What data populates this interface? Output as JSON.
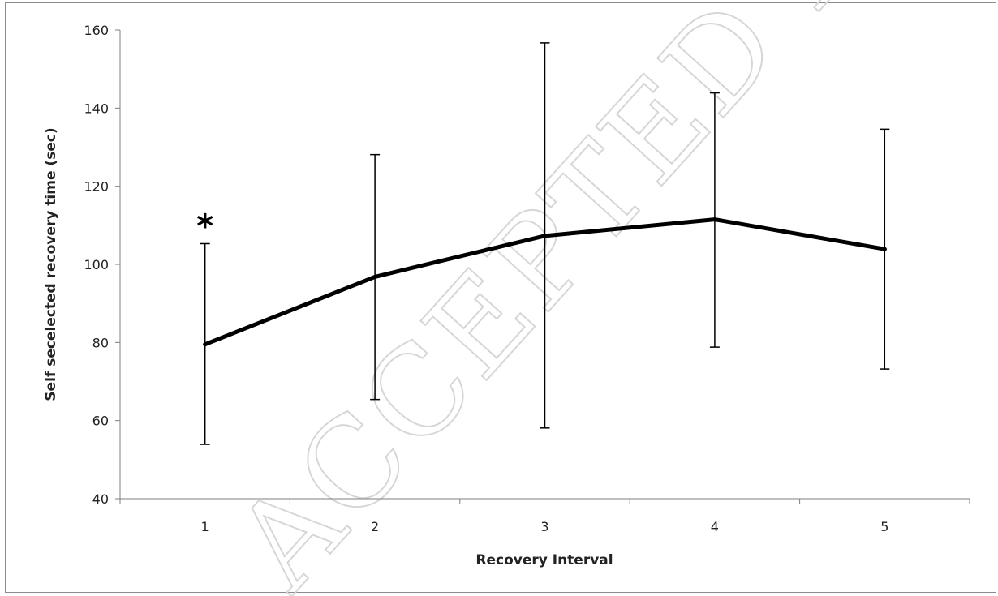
{
  "watermark": "ACCEPTED MANUSCRIPT",
  "chart_data": {
    "type": "line",
    "title": "",
    "xlabel": "Recovery Interval",
    "ylabel": "Self secelected recovery time (sec)",
    "categories": [
      "1",
      "2",
      "3",
      "4",
      "5"
    ],
    "series": [
      {
        "values": [
          79.5,
          96.8,
          107.3,
          111.5,
          103.9
        ],
        "error_upper": [
          105.3,
          128.1,
          156.7,
          143.9,
          134.6
        ],
        "error_lower": [
          53.9,
          65.4,
          58.1,
          78.8,
          73.2
        ],
        "color": "#000000"
      }
    ],
    "annotations": [
      {
        "category": "1",
        "text": "*"
      }
    ],
    "ylim": [
      40,
      160
    ],
    "yticks": [
      40,
      60,
      80,
      100,
      120,
      140,
      160
    ],
    "grid": false,
    "legend": "none"
  }
}
